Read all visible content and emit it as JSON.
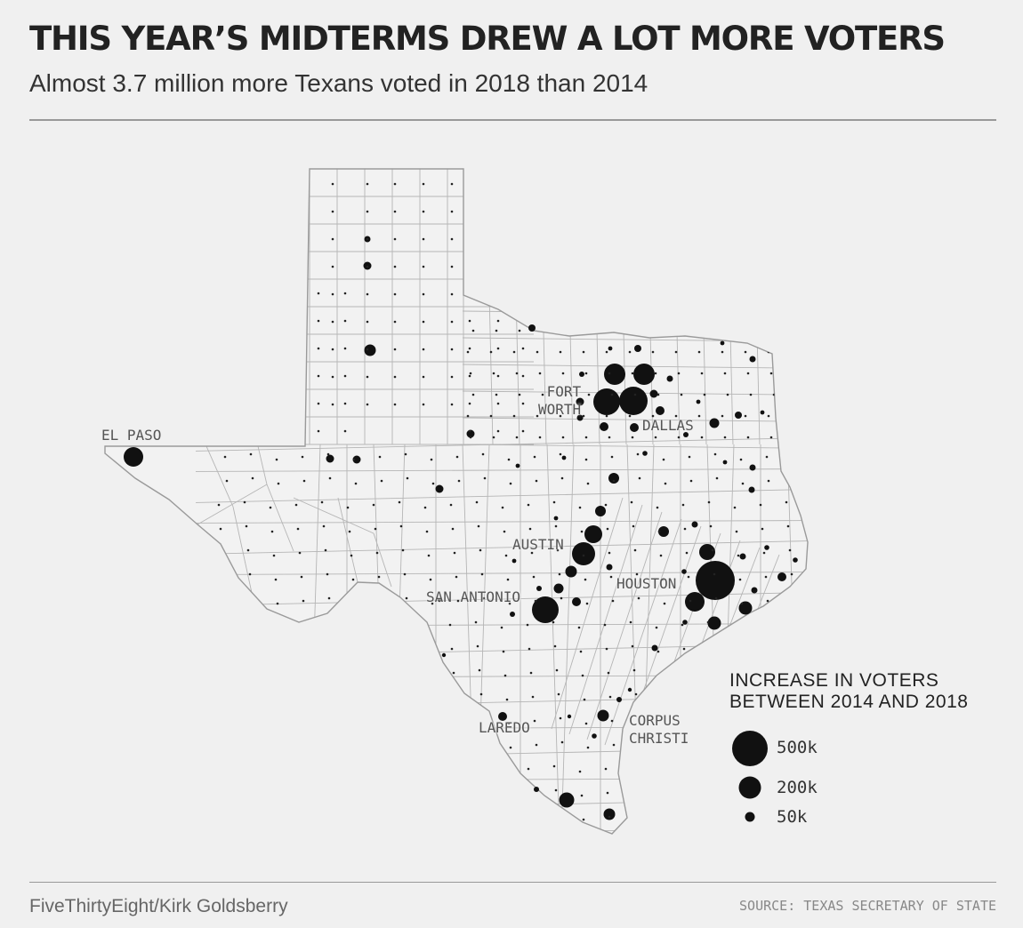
{
  "header": {
    "title": "THIS YEAR’S MIDTERMS DREW A LOT MORE VOTERS",
    "subtitle": "Almost 3.7 million more Texans voted in 2018 than 2014"
  },
  "map": {
    "region": "Texas",
    "unit": "counties",
    "colors": {
      "background": "#f0f0f0",
      "county_fill": "#f2f2f2",
      "county_stroke": "#b5b5b5",
      "bubble": "#111111"
    },
    "cities": {
      "el_paso": "EL PASO",
      "fort_worth": "FORT\nWORTH",
      "dallas": "DALLAS",
      "austin": "AUSTIN",
      "san_antonio": "SAN ANTONIO",
      "houston": "HOUSTON",
      "laredo": "LAREDO",
      "corpus_christi": "CORPUS\nCHRISTI"
    }
  },
  "legend": {
    "title_line1": "INCREASE IN VOTERS",
    "title_line2": "BETWEEN 2014 AND 2018",
    "items": [
      {
        "label": "500k",
        "value": 500000
      },
      {
        "label": "200k",
        "value": 200000
      },
      {
        "label": "50k",
        "value": 50000
      }
    ]
  },
  "footer": {
    "credit": "FiveThirtyEight/Kirk Goldsberry",
    "source": "SOURCE: TEXAS SECRETARY OF STATE"
  }
}
